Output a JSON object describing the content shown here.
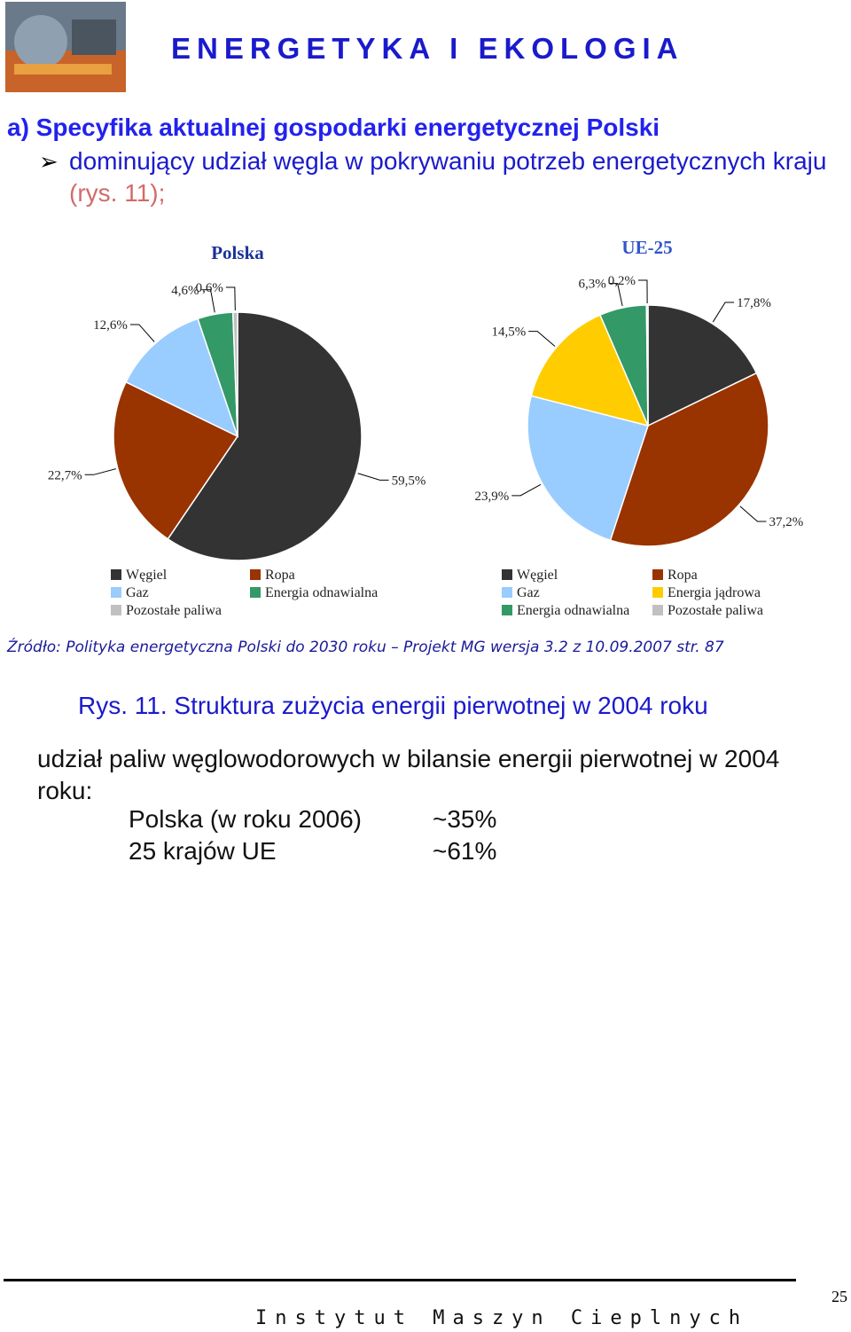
{
  "header": {
    "title": "ENERGETYKA I EKOLOGIA"
  },
  "section": {
    "heading": "a) Specyfika aktualnej gospodarki energetycznej Polski",
    "bullet_text": "dominujący udział węgla w pokrywaniu potrzeb energetycznych kraju",
    "bullet_ref": "(rys. 11);"
  },
  "chart_data": [
    {
      "type": "pie",
      "title": "Polska",
      "categories": [
        "Węgiel",
        "Ropa",
        "Gaz",
        "Energia odnawialna",
        "Pozostałe paliwa"
      ],
      "values": [
        59.5,
        22.7,
        12.6,
        4.6,
        0.6
      ],
      "value_labels": [
        "59,5%",
        "22,7%",
        "12,6%",
        "4,6%",
        "0,6%"
      ],
      "colors": [
        "#333333",
        "#993300",
        "#99ccff",
        "#339966",
        "#c0c0c0"
      ]
    },
    {
      "type": "pie",
      "title": "UE-25",
      "categories": [
        "Węgiel",
        "Ropa",
        "Gaz",
        "Energia jądrowa",
        "Energia odnawialna",
        "Pozostałe paliwa"
      ],
      "values": [
        17.8,
        37.2,
        23.9,
        14.5,
        6.3,
        0.2
      ],
      "value_labels": [
        "17,8%",
        "37,2%",
        "23,9%",
        "14,5%",
        "6,3%",
        "0,2%"
      ],
      "colors": [
        "#333333",
        "#993300",
        "#99ccff",
        "#ffcc00",
        "#339966",
        "#c0c0c0"
      ]
    }
  ],
  "source": "Źródło: Polityka energetyczna Polski do 2030 roku – Projekt MG wersja 3.2 z 10.09.2007 str. 87",
  "caption": "Rys. 11. Struktura zużycia energii pierwotnej w 2004 roku",
  "paragraph": "udział paliw węglowodorowych w bilansie energii pierwotnej w 2004 roku:",
  "rows": [
    [
      "Polska (w roku 2006)",
      "~35%"
    ],
    [
      "25 krajów UE",
      "~61%"
    ]
  ],
  "footer": {
    "institute": "Instytut Maszyn Cieplnych",
    "page": "25"
  }
}
